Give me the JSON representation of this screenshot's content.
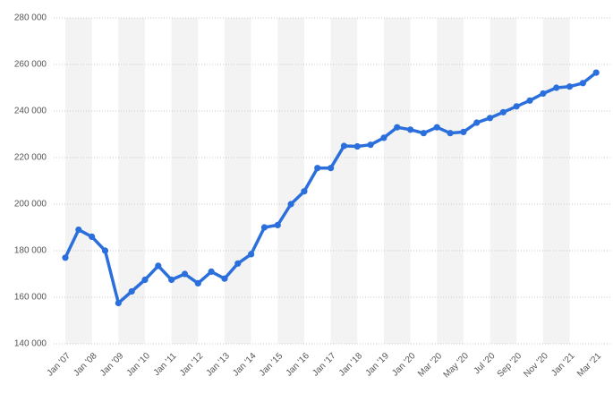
{
  "chart_data": {
    "type": "line",
    "categories": [
      "Jan '07",
      null,
      "Jan '08",
      null,
      "Jan '09",
      null,
      "Jan '10",
      null,
      "Jan '11",
      null,
      "Jan '12",
      null,
      "Jan '13",
      null,
      "Jan '14",
      null,
      "Jan '15",
      null,
      "Jan '16",
      null,
      "Jan '17",
      null,
      "Jan '18",
      null,
      "Jan '19",
      null,
      "Jan '20",
      null,
      "Mar '20",
      null,
      "May '20",
      null,
      "Jul '20",
      null,
      "Sep '20",
      null,
      "Nov '20",
      null,
      "Jan '21",
      null,
      "Mar '21"
    ],
    "values": [
      177000,
      189000,
      186000,
      180000,
      157500,
      162500,
      167500,
      173500,
      167500,
      170000,
      166000,
      171000,
      168000,
      174500,
      178500,
      190000,
      191000,
      200000,
      205500,
      215500,
      215500,
      225000,
      224800,
      225500,
      228500,
      233000,
      232000,
      230500,
      233000,
      230500,
      231000,
      235000,
      237000,
      239500,
      242000,
      244500,
      247500,
      250000,
      250500,
      252000,
      256500
    ],
    "color": "#2a6fdb",
    "ylim": [
      140000,
      280000
    ],
    "yticks": [
      {
        "value": 140000,
        "label": "140 000"
      },
      {
        "value": 160000,
        "label": "160 000"
      },
      {
        "value": 180000,
        "label": "180 000"
      },
      {
        "value": 200000,
        "label": "200 000"
      },
      {
        "value": 220000,
        "label": "220 000"
      },
      {
        "value": 240000,
        "label": "240 000"
      },
      {
        "value": 260000,
        "label": "260 000"
      },
      {
        "value": 280000,
        "label": "280 000"
      }
    ],
    "grid": true
  }
}
